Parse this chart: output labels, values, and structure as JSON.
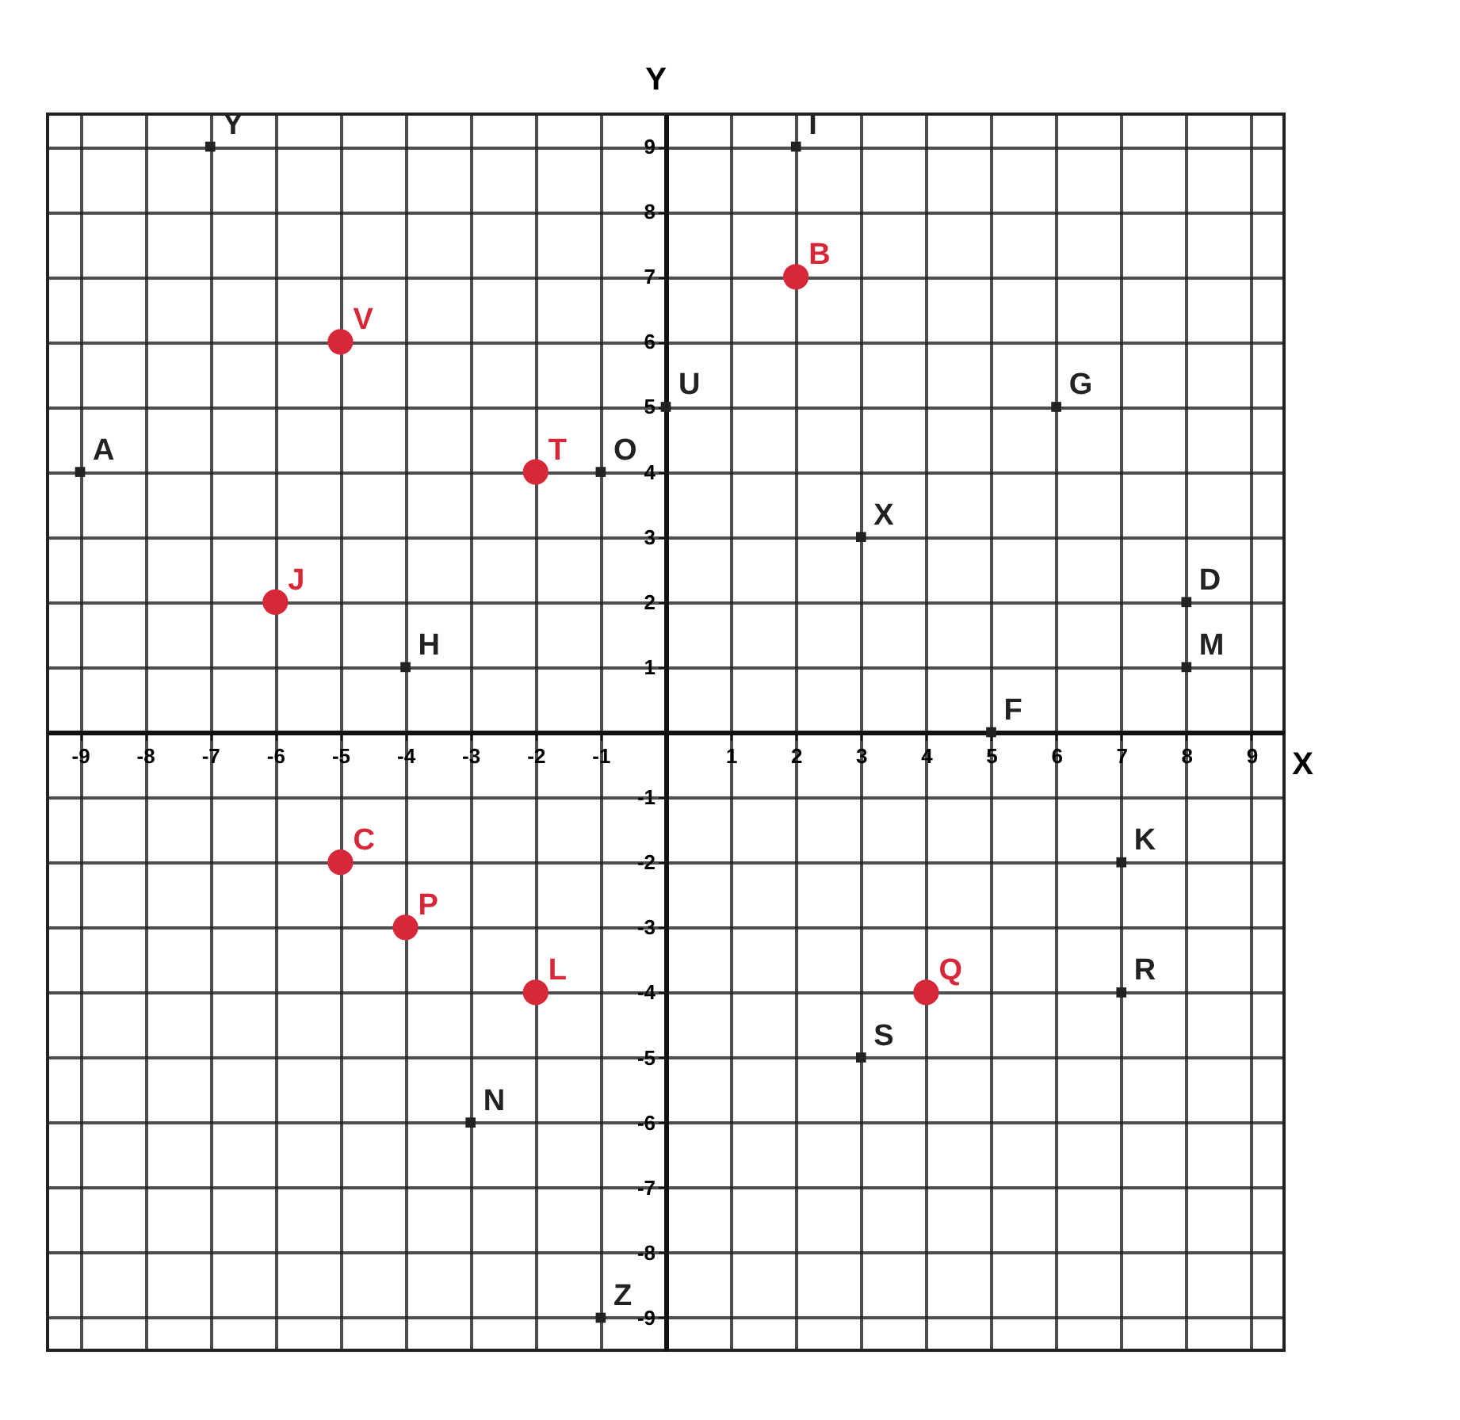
{
  "chart_data": {
    "type": "scatter",
    "xlabel": "X",
    "ylabel": "Y",
    "xlim": [
      -9.5,
      9.5
    ],
    "ylim": [
      -9.5,
      9.5
    ],
    "xticks": [
      -9,
      -8,
      -7,
      -6,
      -5,
      -4,
      -3,
      -2,
      -1,
      1,
      2,
      3,
      4,
      5,
      6,
      7,
      8,
      9
    ],
    "yticks": [
      -9,
      -8,
      -7,
      -6,
      -5,
      -4,
      -3,
      -2,
      -1,
      1,
      2,
      3,
      4,
      5,
      6,
      7,
      8,
      9
    ],
    "grid": true,
    "series": [
      {
        "color": "#222222",
        "marker": "square",
        "x": [
          -7,
          2,
          0,
          6,
          -9,
          -1,
          3,
          8,
          8,
          -4,
          5,
          7,
          7,
          3,
          -3,
          -1
        ],
        "values": [
          9,
          9,
          5,
          5,
          4,
          4,
          3,
          2,
          1,
          1,
          0,
          -2,
          -4,
          -5,
          -6,
          -9
        ]
      },
      {
        "color": "#d62839",
        "marker": "circle",
        "x": [
          -5,
          2,
          -2,
          -6,
          -5,
          -4,
          -2,
          4
        ],
        "values": [
          6,
          7,
          4,
          2,
          -2,
          -3,
          -4,
          -4
        ]
      }
    ],
    "annotations": [
      {
        "text": "Y",
        "x": -7,
        "y": 9
      },
      {
        "text": "I",
        "x": 2,
        "y": 9
      },
      {
        "text": "U",
        "x": 0,
        "y": 5
      },
      {
        "text": "G",
        "x": 6,
        "y": 5
      },
      {
        "text": "A",
        "x": -9,
        "y": 4
      },
      {
        "text": "O",
        "x": -1,
        "y": 4
      },
      {
        "text": "X",
        "x": 3,
        "y": 3
      },
      {
        "text": "D",
        "x": 8,
        "y": 2
      },
      {
        "text": "M",
        "x": 8,
        "y": 1
      },
      {
        "text": "H",
        "x": -4,
        "y": 1
      },
      {
        "text": "F",
        "x": 5,
        "y": 0
      },
      {
        "text": "K",
        "x": 7,
        "y": -2
      },
      {
        "text": "R",
        "x": 7,
        "y": -4
      },
      {
        "text": "S",
        "x": 3,
        "y": -5
      },
      {
        "text": "N",
        "x": -3,
        "y": -6
      },
      {
        "text": "Z",
        "x": -1,
        "y": -9
      },
      {
        "text": "V",
        "x": -5,
        "y": 6
      },
      {
        "text": "B",
        "x": 2,
        "y": 7
      },
      {
        "text": "T",
        "x": -2,
        "y": 4
      },
      {
        "text": "J",
        "x": -6,
        "y": 2
      },
      {
        "text": "C",
        "x": -5,
        "y": -2
      },
      {
        "text": "P",
        "x": -4,
        "y": -3
      },
      {
        "text": "L",
        "x": -2,
        "y": -4
      },
      {
        "text": "Q",
        "x": 4,
        "y": -4
      }
    ]
  }
}
